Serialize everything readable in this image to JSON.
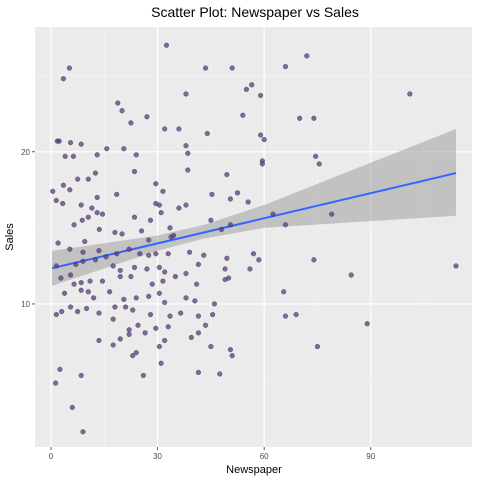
{
  "chart_data": {
    "type": "scatter",
    "title": "Scatter Plot: Newspaper vs Sales",
    "xlabel": "Newspaper",
    "ylabel": "Sales",
    "xlim": [
      -4.5,
      118.5
    ],
    "ylim": [
      0.6,
      28.2
    ],
    "x_ticks": [
      0,
      30,
      60,
      90
    ],
    "y_ticks": [
      10,
      20
    ],
    "x_tick_labels": [
      "0",
      "30",
      "60",
      "90"
    ],
    "y_tick_labels": [
      "10",
      "20"
    ],
    "grid": true,
    "colors": {
      "panel": "#ebebeb",
      "grid_major": "#ffffff",
      "grid_minor": "#f5f5f5",
      "points": "#5b3c7a",
      "fit_line": "#3366ff",
      "ribbon": "#999999"
    },
    "fit": {
      "type": "linear",
      "x_range": [
        0.3,
        114
      ],
      "y_at_start": 12.35,
      "y_at_end": 18.6,
      "ci_lower": [
        [
          0.3,
          11.2
        ],
        [
          30,
          13.5
        ],
        [
          43,
          14.3
        ],
        [
          60,
          15.0
        ],
        [
          114,
          15.8
        ]
      ],
      "ci_upper": [
        [
          0.3,
          13.5
        ],
        [
          30,
          14.5
        ],
        [
          43,
          15.2
        ],
        [
          60,
          16.5
        ],
        [
          114,
          21.5
        ]
      ]
    },
    "points": [
      [
        32.5,
        27.0
      ],
      [
        72,
        26.3
      ],
      [
        5.2,
        25.5
      ],
      [
        43.5,
        25.5
      ],
      [
        51,
        25.5
      ],
      [
        66,
        25.6
      ],
      [
        3.5,
        24.8
      ],
      [
        55,
        24.1
      ],
      [
        56.5,
        24.4
      ],
      [
        101,
        23.8
      ],
      [
        38,
        23.8
      ],
      [
        59,
        23.7
      ],
      [
        18.8,
        23.2
      ],
      [
        20,
        22.7
      ],
      [
        27,
        22.3
      ],
      [
        22.5,
        21.9
      ],
      [
        54,
        22.4
      ],
      [
        70,
        22.2
      ],
      [
        74,
        22.2
      ],
      [
        32,
        21.5
      ],
      [
        44,
        21.2
      ],
      [
        36,
        21.5
      ],
      [
        59,
        21.1
      ],
      [
        60,
        20.8
      ],
      [
        1.8,
        20.7
      ],
      [
        2.3,
        20.7
      ],
      [
        5.5,
        20.6
      ],
      [
        8.5,
        20.5
      ],
      [
        15.7,
        20.2
      ],
      [
        20.5,
        20.2
      ],
      [
        38,
        20.4
      ],
      [
        38.5,
        19.9
      ],
      [
        4,
        19.7
      ],
      [
        6.3,
        19.7
      ],
      [
        13,
        19.8
      ],
      [
        24,
        19.8
      ],
      [
        59.5,
        19.4
      ],
      [
        59.5,
        19.2
      ],
      [
        74.5,
        19.7
      ],
      [
        75.5,
        19.2
      ],
      [
        38.5,
        18.8
      ],
      [
        12.5,
        18.6
      ],
      [
        23.5,
        18.7
      ],
      [
        10.5,
        18.2
      ],
      [
        7.5,
        18.2
      ],
      [
        49.5,
        18.5
      ],
      [
        3.5,
        17.8
      ],
      [
        29.5,
        17.9
      ],
      [
        31.5,
        17.4
      ],
      [
        45.3,
        17.2
      ],
      [
        52.5,
        17.3
      ],
      [
        0.5,
        17.4
      ],
      [
        1.5,
        16.8
      ],
      [
        5.3,
        17.5
      ],
      [
        13,
        17.0
      ],
      [
        18.5,
        17.2
      ],
      [
        29.5,
        16.6
      ],
      [
        30.5,
        16.5
      ],
      [
        36,
        16.3
      ],
      [
        38,
        16.5
      ],
      [
        3.3,
        16.6
      ],
      [
        8.5,
        16.5
      ],
      [
        11.5,
        16.3
      ],
      [
        13,
        16.0
      ],
      [
        14.5,
        15.9
      ],
      [
        31,
        16.0
      ],
      [
        50.5,
        16.9
      ],
      [
        55.5,
        16.7
      ],
      [
        6.5,
        15.2
      ],
      [
        8.8,
        15.5
      ],
      [
        10.5,
        15.7
      ],
      [
        23.5,
        15.7
      ],
      [
        28,
        15.5
      ],
      [
        33.5,
        15.0
      ],
      [
        62.5,
        15.9
      ],
      [
        66,
        15.2
      ],
      [
        79,
        15.9
      ],
      [
        13.6,
        14.9
      ],
      [
        18,
        14.7
      ],
      [
        20,
        14.6
      ],
      [
        25.5,
        14.8
      ],
      [
        27.5,
        14.2
      ],
      [
        33.8,
        14.4
      ],
      [
        34.5,
        14.5
      ],
      [
        45,
        15.5
      ],
      [
        48,
        14.9
      ],
      [
        50.5,
        15.2
      ],
      [
        2,
        14.0
      ],
      [
        5.3,
        13.6
      ],
      [
        9,
        13.4
      ],
      [
        9.5,
        14.1
      ],
      [
        13.5,
        13.5
      ],
      [
        15.5,
        13.1
      ],
      [
        18.5,
        13.3
      ],
      [
        22,
        13.6
      ],
      [
        25,
        13.3
      ],
      [
        27.5,
        13.2
      ],
      [
        29.5,
        13.3
      ],
      [
        33,
        13.3
      ],
      [
        39,
        13.4
      ],
      [
        43,
        13.2
      ],
      [
        49.5,
        13.0
      ],
      [
        57,
        13.3
      ],
      [
        74,
        12.9
      ],
      [
        1.5,
        12.5
      ],
      [
        7,
        12.6
      ],
      [
        9,
        12.8
      ],
      [
        12.5,
        12.9
      ],
      [
        17.5,
        12.5
      ],
      [
        19.5,
        12.2
      ],
      [
        23.5,
        12.4
      ],
      [
        27,
        12.3
      ],
      [
        30.5,
        12.4
      ],
      [
        32,
        12.1
      ],
      [
        38,
        12.0
      ],
      [
        41.5,
        12.6
      ],
      [
        49,
        12.3
      ],
      [
        56,
        12.3
      ],
      [
        58.5,
        12.9
      ],
      [
        84.5,
        11.9
      ],
      [
        114,
        12.5
      ],
      [
        2.8,
        11.7
      ],
      [
        5.5,
        11.9
      ],
      [
        8.5,
        11.4
      ],
      [
        11,
        11.5
      ],
      [
        14.5,
        11.5
      ],
      [
        19.5,
        11.8
      ],
      [
        22.5,
        11.8
      ],
      [
        28.5,
        11.3
      ],
      [
        31.5,
        11.5
      ],
      [
        35,
        11.8
      ],
      [
        41,
        11.3
      ],
      [
        49,
        11.6
      ],
      [
        50,
        11.7
      ],
      [
        3.8,
        10.7
      ],
      [
        6.5,
        11.3
      ],
      [
        8.5,
        10.9
      ],
      [
        10.5,
        10.8
      ],
      [
        12,
        10.4
      ],
      [
        16.5,
        10.8
      ],
      [
        20.5,
        10.3
      ],
      [
        24,
        10.4
      ],
      [
        27.5,
        10.5
      ],
      [
        30.5,
        10.7
      ],
      [
        32,
        10.1
      ],
      [
        38,
        10.4
      ],
      [
        40.5,
        10.2
      ],
      [
        46,
        10.0
      ],
      [
        65.5,
        10.8
      ],
      [
        5.5,
        9.8
      ],
      [
        7.5,
        9.5
      ],
      [
        10,
        9.7
      ],
      [
        13.5,
        9.4
      ],
      [
        18,
        9.8
      ],
      [
        21,
        9.8
      ],
      [
        23,
        9.6
      ],
      [
        28,
        9.3
      ],
      [
        33.5,
        9.2
      ],
      [
        36.5,
        9.4
      ],
      [
        41.5,
        9.2
      ],
      [
        45.5,
        9.3
      ],
      [
        1.5,
        9.3
      ],
      [
        3,
        9.5
      ],
      [
        17.5,
        9.0
      ],
      [
        24.5,
        8.6
      ],
      [
        29.5,
        8.4
      ],
      [
        33,
        8.5
      ],
      [
        43.5,
        8.6
      ],
      [
        66,
        9.2
      ],
      [
        69,
        9.3
      ],
      [
        89,
        8.7
      ],
      [
        22,
        8.3
      ],
      [
        26.5,
        8.1
      ],
      [
        41.5,
        8.1
      ],
      [
        13.5,
        7.6
      ],
      [
        19.5,
        7.7
      ],
      [
        22,
        8.0
      ],
      [
        32,
        7.6
      ],
      [
        39.5,
        7.8
      ],
      [
        75,
        7.2
      ],
      [
        17.5,
        7.3
      ],
      [
        23,
        6.6
      ],
      [
        24,
        6.8
      ],
      [
        30.5,
        7.2
      ],
      [
        45,
        7.2
      ],
      [
        50.5,
        7.0
      ],
      [
        51,
        6.6
      ],
      [
        31,
        6.1
      ],
      [
        2.5,
        5.7
      ],
      [
        8.5,
        5.3
      ],
      [
        26,
        5.3
      ],
      [
        41.5,
        5.5
      ],
      [
        47.5,
        5.4
      ],
      [
        1.3,
        4.8
      ],
      [
        6,
        3.2
      ],
      [
        9,
        1.6
      ]
    ]
  }
}
